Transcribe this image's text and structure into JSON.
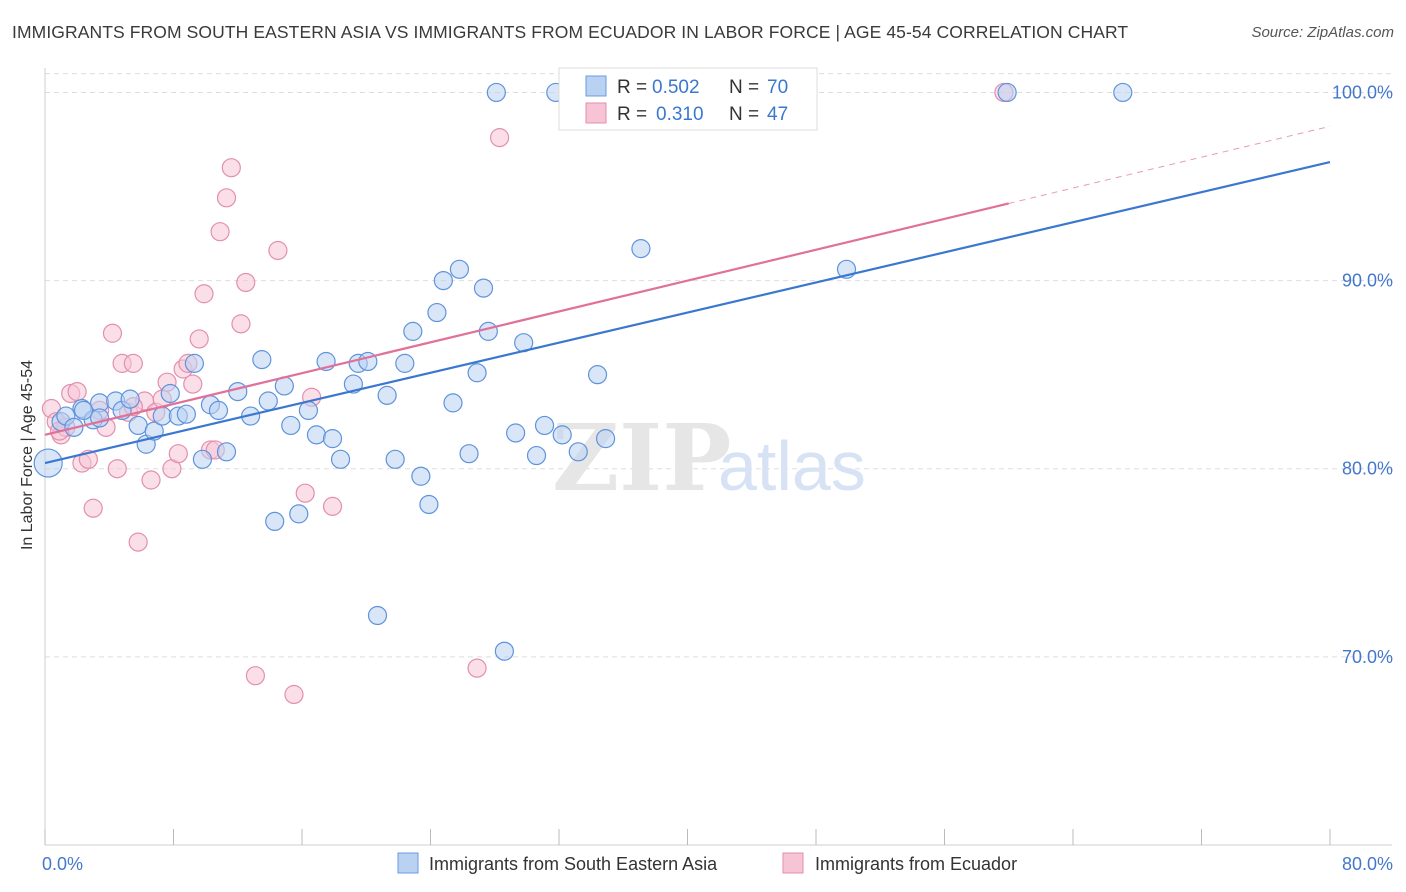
{
  "title": "IMMIGRANTS FROM SOUTH EASTERN ASIA VS IMMIGRANTS FROM ECUADOR IN LABOR FORCE | AGE 45-54 CORRELATION CHART",
  "source": "Source: ZipAtlas.com",
  "watermark": {
    "zip": "ZIP",
    "atlas": "atlas"
  },
  "colors": {
    "blue": "#3a78d0",
    "blue_fill": "#b9d2f2",
    "pink": "#e07199",
    "pink_fill": "#f6c4d5",
    "axis_text": "#4477cc",
    "grid": "#dddddd"
  },
  "legend_top": [
    {
      "r_label": "R = ",
      "r_value": "0.502",
      "n_label": "N = ",
      "n_value": "70"
    },
    {
      "r_label": "R = ",
      "r_value": "0.310",
      "n_label": "N = ",
      "n_value": "47"
    }
  ],
  "chart_data": {
    "type": "scatter",
    "title": "IMMIGRANTS FROM SOUTH EASTERN ASIA VS IMMIGRANTS FROM ECUADOR IN LABOR FORCE | AGE 45-54 CORRELATION CHART",
    "xlabel": "",
    "ylabel": "In Labor Force | Age 45-54",
    "xlim": [
      0,
      80
    ],
    "ylim": [
      60,
      101.3
    ],
    "x_tick_labels": [
      "0.0%",
      "80.0%"
    ],
    "y_ticks": [
      70,
      80,
      90,
      100
    ],
    "y_tick_labels": [
      "70.0%",
      "80.0%",
      "90.0%",
      "100.0%"
    ],
    "series": [
      {
        "name": "Immigrants from South Eastern Asia",
        "r": 0.502,
        "n": 70,
        "trend": {
          "x0": 0,
          "y0": 80.3,
          "x1": 80,
          "y1": 96.3,
          "solid_to": 80
        },
        "points": [
          [
            0.2,
            80.3
          ],
          [
            1,
            82.5
          ],
          [
            1.3,
            82.8
          ],
          [
            1.8,
            82.2
          ],
          [
            2.3,
            83.2
          ],
          [
            3,
            82.6
          ],
          [
            3.4,
            83.5
          ],
          [
            4.4,
            83.6
          ],
          [
            4.8,
            83.1
          ],
          [
            5.3,
            83.7
          ],
          [
            5.8,
            82.3
          ],
          [
            6.3,
            81.3
          ],
          [
            6.8,
            82
          ],
          [
            7.3,
            82.8
          ],
          [
            7.8,
            84
          ],
          [
            8.3,
            82.8
          ],
          [
            8.8,
            82.9
          ],
          [
            9.3,
            85.6
          ],
          [
            9.8,
            80.5
          ],
          [
            10.3,
            83.4
          ],
          [
            10.8,
            83.1
          ],
          [
            11.3,
            80.9
          ],
          [
            12,
            84.1
          ],
          [
            12.8,
            82.8
          ],
          [
            13.5,
            85.8
          ],
          [
            13.9,
            83.6
          ],
          [
            14.3,
            77.2
          ],
          [
            14.9,
            84.4
          ],
          [
            15.3,
            82.3
          ],
          [
            15.8,
            77.6
          ],
          [
            16.4,
            83.1
          ],
          [
            16.9,
            81.8
          ],
          [
            17.5,
            85.7
          ],
          [
            17.9,
            81.6
          ],
          [
            18.4,
            80.5
          ],
          [
            19.2,
            84.5
          ],
          [
            19.5,
            85.6
          ],
          [
            20.1,
            85.7
          ],
          [
            20.7,
            72.2
          ],
          [
            21.3,
            83.9
          ],
          [
            21.8,
            80.5
          ],
          [
            22.4,
            85.6
          ],
          [
            22.9,
            87.3
          ],
          [
            23.4,
            79.6
          ],
          [
            23.9,
            78.1
          ],
          [
            24.4,
            88.3
          ],
          [
            24.8,
            90
          ],
          [
            25.4,
            83.5
          ],
          [
            25.8,
            90.6
          ],
          [
            26.4,
            80.8
          ],
          [
            26.9,
            85.1
          ],
          [
            27.3,
            89.6
          ],
          [
            27.6,
            87.3
          ],
          [
            28.6,
            70.3
          ],
          [
            29.3,
            81.9
          ],
          [
            29.8,
            86.7
          ],
          [
            30.6,
            80.7
          ],
          [
            31.1,
            82.3
          ],
          [
            32.2,
            81.8
          ],
          [
            33.2,
            80.9
          ],
          [
            34.4,
            85
          ],
          [
            34.9,
            81.6
          ],
          [
            37.1,
            91.7
          ],
          [
            28.1,
            100
          ],
          [
            31.8,
            100
          ],
          [
            49.9,
            90.6
          ],
          [
            59.9,
            100
          ],
          [
            67.1,
            100
          ],
          [
            2.4,
            83.1
          ],
          [
            3.4,
            82.7
          ]
        ]
      },
      {
        "name": "Immigrants from Ecuador",
        "r": 0.31,
        "n": 47,
        "trend": {
          "x0": 0,
          "y0": 81.8,
          "x1": 80,
          "y1": 98.2,
          "solid_to": 60
        },
        "points": [
          [
            0.4,
            83.2
          ],
          [
            0.7,
            82.5
          ],
          [
            1,
            81.8
          ],
          [
            1.3,
            82.2
          ],
          [
            1.6,
            84
          ],
          [
            2,
            84.1
          ],
          [
            2.3,
            80.3
          ],
          [
            2.7,
            80.5
          ],
          [
            3,
            77.9
          ],
          [
            3.4,
            83.1
          ],
          [
            3.8,
            82.2
          ],
          [
            4.2,
            87.2
          ],
          [
            4.5,
            80
          ],
          [
            4.8,
            85.6
          ],
          [
            5.2,
            83
          ],
          [
            5.5,
            85.6
          ],
          [
            5.8,
            76.1
          ],
          [
            6.2,
            83.6
          ],
          [
            6.6,
            79.4
          ],
          [
            6.9,
            83
          ],
          [
            7.3,
            83.7
          ],
          [
            7.6,
            84.6
          ],
          [
            7.9,
            80
          ],
          [
            8.3,
            80.8
          ],
          [
            8.6,
            85.3
          ],
          [
            8.9,
            85.6
          ],
          [
            9.2,
            84.5
          ],
          [
            9.6,
            86.9
          ],
          [
            9.9,
            89.3
          ],
          [
            10.3,
            81
          ],
          [
            10.6,
            81
          ],
          [
            10.9,
            92.6
          ],
          [
            11.3,
            94.4
          ],
          [
            11.6,
            96
          ],
          [
            12.2,
            87.7
          ],
          [
            12.5,
            89.9
          ],
          [
            13.1,
            69
          ],
          [
            14.5,
            91.6
          ],
          [
            15.5,
            68
          ],
          [
            16.2,
            78.7
          ],
          [
            16.6,
            83.8
          ],
          [
            17.9,
            78
          ],
          [
            26.9,
            69.4
          ],
          [
            28.3,
            97.6
          ],
          [
            59.7,
            100
          ],
          [
            0.9,
            82
          ],
          [
            5.5,
            83.3
          ]
        ]
      }
    ]
  }
}
